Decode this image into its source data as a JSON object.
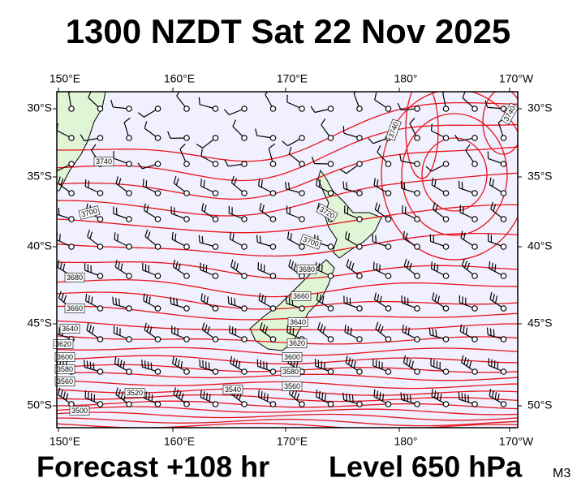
{
  "title": "1300 NZDT Sat 22 Nov 2025",
  "footer": {
    "forecast": "Forecast +108 hr",
    "level": "Level 650 hPa",
    "code": "M3"
  },
  "map": {
    "lon_labels": [
      "150°E",
      "160°E",
      "170°E",
      "180°",
      "170°W"
    ],
    "lat_labels": [
      "30°S",
      "35°S",
      "40°S",
      "45°S",
      "50°S"
    ],
    "contour_labels": [
      "3740",
      "3740",
      "3740",
      "3720",
      "3700",
      "3700",
      "3680",
      "3680",
      "3660",
      "3660",
      "3640",
      "3640",
      "3620",
      "3620",
      "3600",
      "3600",
      "3580",
      "3580",
      "3560",
      "3560",
      "3540",
      "3520",
      "3500"
    ]
  }
}
